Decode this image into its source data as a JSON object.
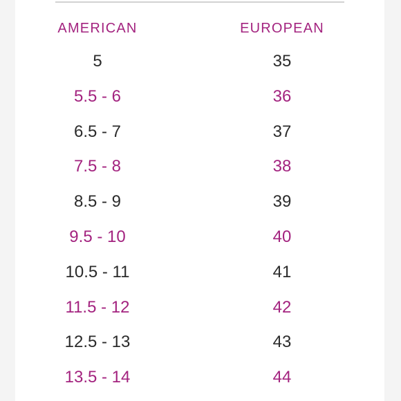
{
  "colors": {
    "accent": "#a3237f",
    "text": "#2b2b2b"
  },
  "headers": {
    "american": "AMERICAN",
    "european": "EUROPEAN"
  },
  "rows": [
    {
      "american": "5",
      "european": "35"
    },
    {
      "american": "5.5 - 6",
      "european": "36"
    },
    {
      "american": "6.5 - 7",
      "european": "37"
    },
    {
      "american": "7.5 - 8",
      "european": "38"
    },
    {
      "american": "8.5 - 9",
      "european": "39"
    },
    {
      "american": "9.5 - 10",
      "european": "40"
    },
    {
      "american": "10.5 - 11",
      "european": "41"
    },
    {
      "american": "11.5 - 12",
      "european": "42"
    },
    {
      "american": "12.5 - 13",
      "european": "43"
    },
    {
      "american": "13.5 - 14",
      "european": "44"
    }
  ]
}
